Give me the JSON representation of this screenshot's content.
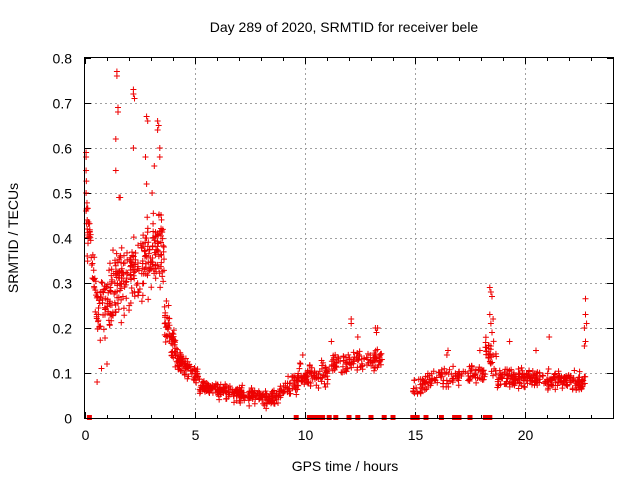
{
  "chart_data": {
    "type": "scatter",
    "title": "Day 289 of 2020, SRMTID for receiver bele",
    "xlabel": "GPS time / hours",
    "ylabel": "SRMTID / TECUs",
    "xlim": [
      0,
      24
    ],
    "ylim": [
      0,
      0.8
    ],
    "grid": true,
    "marker": "+",
    "color": "#ee0000",
    "xticks": [
      0,
      5,
      10,
      15,
      20
    ],
    "yticks": [
      0,
      0.1,
      0.2,
      0.3,
      0.4,
      0.5,
      0.6,
      0.7,
      0.8
    ],
    "xtick_labels": [
      "0",
      "5",
      "10",
      "15",
      "20"
    ],
    "ytick_labels": [
      "0",
      "0.1",
      "0.2",
      "0.3",
      "0.4",
      "0.5",
      "0.6",
      "0.7",
      "0.8"
    ],
    "series": [
      {
        "name": "SRMTID",
        "segments": [
          {
            "t": [
              0.05,
              0.6
            ],
            "base": [
              0.45,
              0.25
            ],
            "spread": 0.1,
            "n": 45
          },
          {
            "t": [
              0.6,
              1.2
            ],
            "base": [
              0.22,
              0.28
            ],
            "spread": 0.1,
            "n": 55
          },
          {
            "t": [
              1.2,
              2.5
            ],
            "base": [
              0.3,
              0.33
            ],
            "spread": 0.11,
            "n": 120
          },
          {
            "t": [
              2.5,
              3.6
            ],
            "base": [
              0.33,
              0.38
            ],
            "spread": 0.13,
            "n": 110
          },
          {
            "t": [
              3.6,
              4.2
            ],
            "base": [
              0.22,
              0.14
            ],
            "spread": 0.06,
            "n": 55
          },
          {
            "t": [
              4.2,
              5.2
            ],
            "base": [
              0.13,
              0.09
            ],
            "spread": 0.035,
            "n": 80
          },
          {
            "t": [
              5.2,
              8.5
            ],
            "base": [
              0.07,
              0.04
            ],
            "spread": 0.025,
            "n": 220
          },
          {
            "t": [
              8.5,
              9.7
            ],
            "base": [
              0.05,
              0.08
            ],
            "spread": 0.03,
            "n": 70
          },
          {
            "t": [
              9.7,
              11.2
            ],
            "base": [
              0.09,
              0.1
            ],
            "spread": 0.035,
            "n": 80
          },
          {
            "t": [
              11.2,
              13.5
            ],
            "base": [
              0.12,
              0.13
            ],
            "spread": 0.035,
            "n": 110
          },
          {
            "t": [
              14.9,
              16.2
            ],
            "base": [
              0.06,
              0.1
            ],
            "spread": 0.03,
            "n": 55
          },
          {
            "t": [
              16.2,
              18.2
            ],
            "base": [
              0.09,
              0.1
            ],
            "spread": 0.03,
            "n": 80
          },
          {
            "t": [
              18.2,
              18.7
            ],
            "base": [
              0.16,
              0.12
            ],
            "spread": 0.06,
            "n": 30
          },
          {
            "t": [
              18.7,
              22.8
            ],
            "base": [
              0.09,
              0.08
            ],
            "spread": 0.03,
            "n": 230
          }
        ],
        "highlights": [
          {
            "x": 1.45,
            "y": 0.77
          },
          {
            "x": 1.45,
            "y": 0.76
          },
          {
            "x": 1.5,
            "y": 0.69
          },
          {
            "x": 1.5,
            "y": 0.68
          },
          {
            "x": 2.2,
            "y": 0.73
          },
          {
            "x": 2.2,
            "y": 0.72
          },
          {
            "x": 2.25,
            "y": 0.71
          },
          {
            "x": 1.4,
            "y": 0.62
          },
          {
            "x": 1.4,
            "y": 0.55
          },
          {
            "x": 2.2,
            "y": 0.6
          },
          {
            "x": 2.8,
            "y": 0.67
          },
          {
            "x": 2.85,
            "y": 0.66
          },
          {
            "x": 3.3,
            "y": 0.66
          },
          {
            "x": 3.35,
            "y": 0.65
          },
          {
            "x": 3.3,
            "y": 0.64
          },
          {
            "x": 3.4,
            "y": 0.6
          },
          {
            "x": 3.4,
            "y": 0.58
          },
          {
            "x": 2.75,
            "y": 0.58
          },
          {
            "x": 3.15,
            "y": 0.56
          },
          {
            "x": 0.05,
            "y": 0.59
          },
          {
            "x": 0.05,
            "y": 0.58
          },
          {
            "x": 0.05,
            "y": 0.55
          },
          {
            "x": 0.05,
            "y": 0.5
          },
          {
            "x": 0.05,
            "y": 0.46
          },
          {
            "x": 0.1,
            "y": 0.44
          },
          {
            "x": 0.1,
            "y": 0.42
          },
          {
            "x": 0.1,
            "y": 0.36
          },
          {
            "x": 1.55,
            "y": 0.49
          },
          {
            "x": 1.6,
            "y": 0.49
          },
          {
            "x": 2.8,
            "y": 0.52
          },
          {
            "x": 3.05,
            "y": 0.5
          },
          {
            "x": 0.55,
            "y": 0.08
          },
          {
            "x": 0.75,
            "y": 0.11
          },
          {
            "x": 1.0,
            "y": 0.12
          },
          {
            "x": 3.7,
            "y": 0.26
          },
          {
            "x": 3.8,
            "y": 0.25
          },
          {
            "x": 12.1,
            "y": 0.22
          },
          {
            "x": 12.1,
            "y": 0.21
          },
          {
            "x": 13.2,
            "y": 0.2
          },
          {
            "x": 13.3,
            "y": 0.2
          },
          {
            "x": 13.25,
            "y": 0.19
          },
          {
            "x": 12.4,
            "y": 0.18
          },
          {
            "x": 11.2,
            "y": 0.17
          },
          {
            "x": 9.9,
            "y": 0.14
          },
          {
            "x": 9.8,
            "y": 0.12
          },
          {
            "x": 18.4,
            "y": 0.29
          },
          {
            "x": 18.45,
            "y": 0.28
          },
          {
            "x": 18.5,
            "y": 0.27
          },
          {
            "x": 18.4,
            "y": 0.23
          },
          {
            "x": 18.45,
            "y": 0.21
          },
          {
            "x": 18.5,
            "y": 0.19
          },
          {
            "x": 18.45,
            "y": 0.16
          },
          {
            "x": 18.55,
            "y": 0.22
          },
          {
            "x": 22.75,
            "y": 0.265
          },
          {
            "x": 22.75,
            "y": 0.23
          },
          {
            "x": 22.7,
            "y": 0.2
          },
          {
            "x": 22.8,
            "y": 0.21
          },
          {
            "x": 22.7,
            "y": 0.16
          },
          {
            "x": 22.75,
            "y": 0.17
          },
          {
            "x": 21.1,
            "y": 0.18
          },
          {
            "x": 16.5,
            "y": 0.15
          },
          {
            "x": 16.45,
            "y": 0.14
          },
          {
            "x": 17.95,
            "y": 0.15
          },
          {
            "x": 19.3,
            "y": 0.17
          },
          {
            "x": 20.5,
            "y": 0.15
          }
        ],
        "zero_values_at": [
          0.2,
          9.6,
          10.2,
          10.4,
          10.6,
          10.8,
          11.1,
          11.4,
          12.0,
          12.4,
          13.0,
          13.6,
          14.0,
          14.9,
          15.0,
          15.1,
          15.5,
          16.2,
          16.8,
          17.0,
          17.5,
          18.2,
          18.4
        ]
      }
    ]
  }
}
